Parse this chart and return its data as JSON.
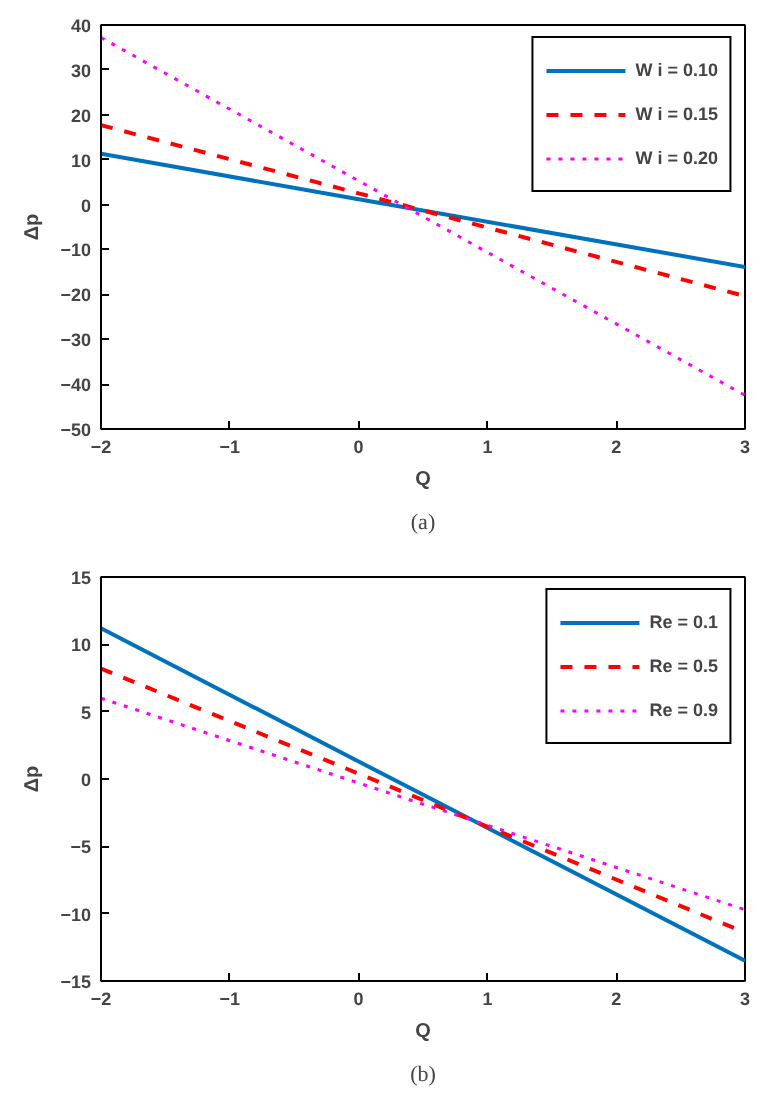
{
  "chart_data": [
    {
      "type": "line",
      "xlabel": "Q",
      "ylabel": "Δp",
      "x": [
        -2,
        0,
        3
      ],
      "xlim": [
        -2,
        3
      ],
      "xticks": [
        -2,
        -1,
        0,
        1,
        2,
        3
      ],
      "ylim": [
        -50,
        40
      ],
      "yticks": [
        -50,
        -40,
        -30,
        -20,
        -10,
        0,
        10,
        20,
        30,
        40
      ],
      "grid": false,
      "legend": "top right",
      "annotations": [
        "(a)"
      ],
      "series": [
        {
          "name": "W i = 0.10",
          "color": "#0072bd",
          "line_style": "solid",
          "values": [
            11.3,
            1.2,
            -13.9
          ]
        },
        {
          "name": "W i = 0.15",
          "color": "#ff0000",
          "line_style": "dashed",
          "values": [
            17.7,
            2.5,
            -20.4
          ]
        },
        {
          "name": "W i = 0.20",
          "color": "#ff00ff",
          "line_style": "dotted",
          "values": [
            37.2,
            5.3,
            -42.5
          ]
        }
      ]
    },
    {
      "type": "line",
      "xlabel": "Q",
      "ylabel": "Δp",
      "x": [
        -2,
        0,
        3
      ],
      "xlim": [
        -2,
        3
      ],
      "xticks": [
        -2,
        -1,
        0,
        1,
        2,
        3
      ],
      "ylim": [
        -15,
        15
      ],
      "yticks": [
        -15,
        -10,
        -5,
        0,
        5,
        10,
        15
      ],
      "grid": false,
      "legend": "top right",
      "annotations": [
        "(b)"
      ],
      "series": [
        {
          "name": "Re = 0.1",
          "color": "#0072bd",
          "line_style": "solid",
          "values": [
            11.2,
            1.3,
            -13.5
          ]
        },
        {
          "name": "Re = 0.5",
          "color": "#ff0000",
          "line_style": "dashed",
          "values": [
            8.2,
            0.4,
            -11.4
          ]
        },
        {
          "name": "Re = 0.9",
          "color": "#ff00ff",
          "line_style": "dotted",
          "values": [
            6.0,
            -0.3,
            -9.7
          ]
        }
      ]
    }
  ]
}
